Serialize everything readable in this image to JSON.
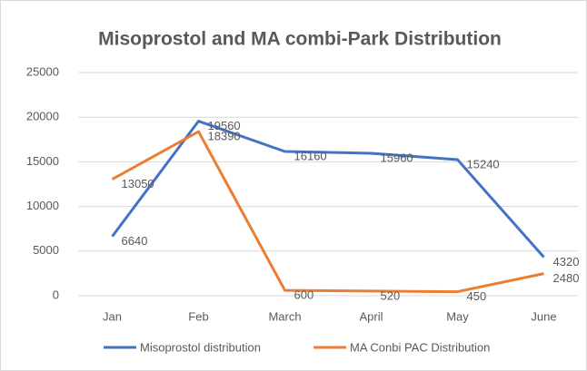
{
  "chart_data": {
    "type": "line",
    "title": "Misoprostol and MA combi-Park Distribution",
    "categories": [
      "Jan",
      "Feb",
      "March",
      "April",
      "May",
      "June"
    ],
    "series": [
      {
        "name": "Misoprostol distribution",
        "color": "#4472c4",
        "values": [
          6640,
          19560,
          16160,
          15960,
          15240,
          4320
        ]
      },
      {
        "name": "MA Conbi PAC Distribution",
        "color": "#ed7d31",
        "values": [
          13050,
          18390,
          600,
          520,
          450,
          2480
        ]
      }
    ],
    "ylim": [
      0,
      25000
    ],
    "yticks": [
      0,
      5000,
      10000,
      15000,
      20000,
      25000
    ],
    "grid": true,
    "legend": "bottom"
  }
}
